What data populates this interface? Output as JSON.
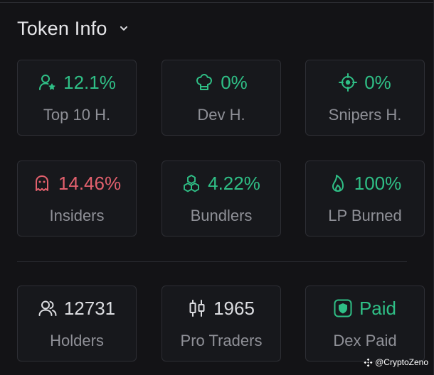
{
  "header": {
    "title": "Token Info"
  },
  "colors": {
    "green": "#2fbf86",
    "red": "#e2606d",
    "muted": "#8f9097",
    "white": "#dcdde1"
  },
  "cards": [
    {
      "value": "12.1%",
      "label": "Top 10 H.",
      "icon": "user-star-icon"
    },
    {
      "value": "0%",
      "label": "Dev H.",
      "icon": "chef-hat-icon"
    },
    {
      "value": "0%",
      "label": "Snipers H.",
      "icon": "crosshair-icon"
    },
    {
      "value": "14.46%",
      "label": "Insiders",
      "icon": "ghost-icon"
    },
    {
      "value": "4.22%",
      "label": "Bundlers",
      "icon": "boxes-icon"
    },
    {
      "value": "100%",
      "label": "LP Burned",
      "icon": "flame-icon"
    },
    {
      "value": "12731",
      "label": "Holders",
      "icon": "users-icon"
    },
    {
      "value": "1965",
      "label": "Pro Traders",
      "icon": "candlestick-icon"
    },
    {
      "value": "Paid",
      "label": "Dex Paid",
      "icon": "shield-badge-icon"
    }
  ],
  "watermark": {
    "text": "@CryptoZeno",
    "icon": "binance-icon"
  }
}
